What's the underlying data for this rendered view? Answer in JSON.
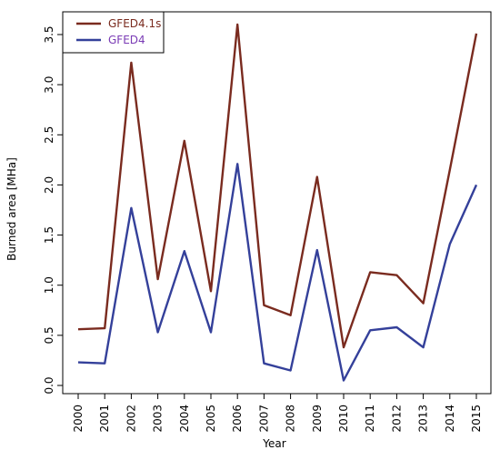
{
  "chart_data": {
    "type": "line",
    "title": "",
    "xlabel": "Year",
    "ylabel": "Burned area [MHa]",
    "x": [
      "2000",
      "2001",
      "2002",
      "2003",
      "2004",
      "2005",
      "2006",
      "2007",
      "2008",
      "2009",
      "2010",
      "2011",
      "2012",
      "2013",
      "2014",
      "2015"
    ],
    "ylim": [
      -0.05,
      3.7
    ],
    "yticks": [
      "0.0",
      "0.5",
      "1.0",
      "1.5",
      "2.0",
      "2.5",
      "3.0",
      "3.5"
    ],
    "ytick_values": [
      0,
      0.5,
      1.0,
      1.5,
      2.0,
      2.5,
      3.0,
      3.5
    ],
    "legend_position": "top-left",
    "grid": false,
    "series": [
      {
        "name": "GFED4.1s",
        "color": "#7a2b1f",
        "legend_text_color": "#7a2b1f",
        "values": [
          0.56,
          0.57,
          3.22,
          1.06,
          2.44,
          0.94,
          3.6,
          0.8,
          0.7,
          2.08,
          0.38,
          1.13,
          1.1,
          0.82,
          2.15,
          3.51
        ]
      },
      {
        "name": "GFED4",
        "color": "#34409a",
        "legend_text_color": "#7a3bb5",
        "values": [
          0.23,
          0.22,
          1.77,
          0.53,
          1.34,
          0.53,
          2.21,
          0.22,
          0.15,
          1.35,
          0.05,
          0.55,
          0.58,
          0.38,
          1.41,
          2.0
        ]
      }
    ]
  }
}
